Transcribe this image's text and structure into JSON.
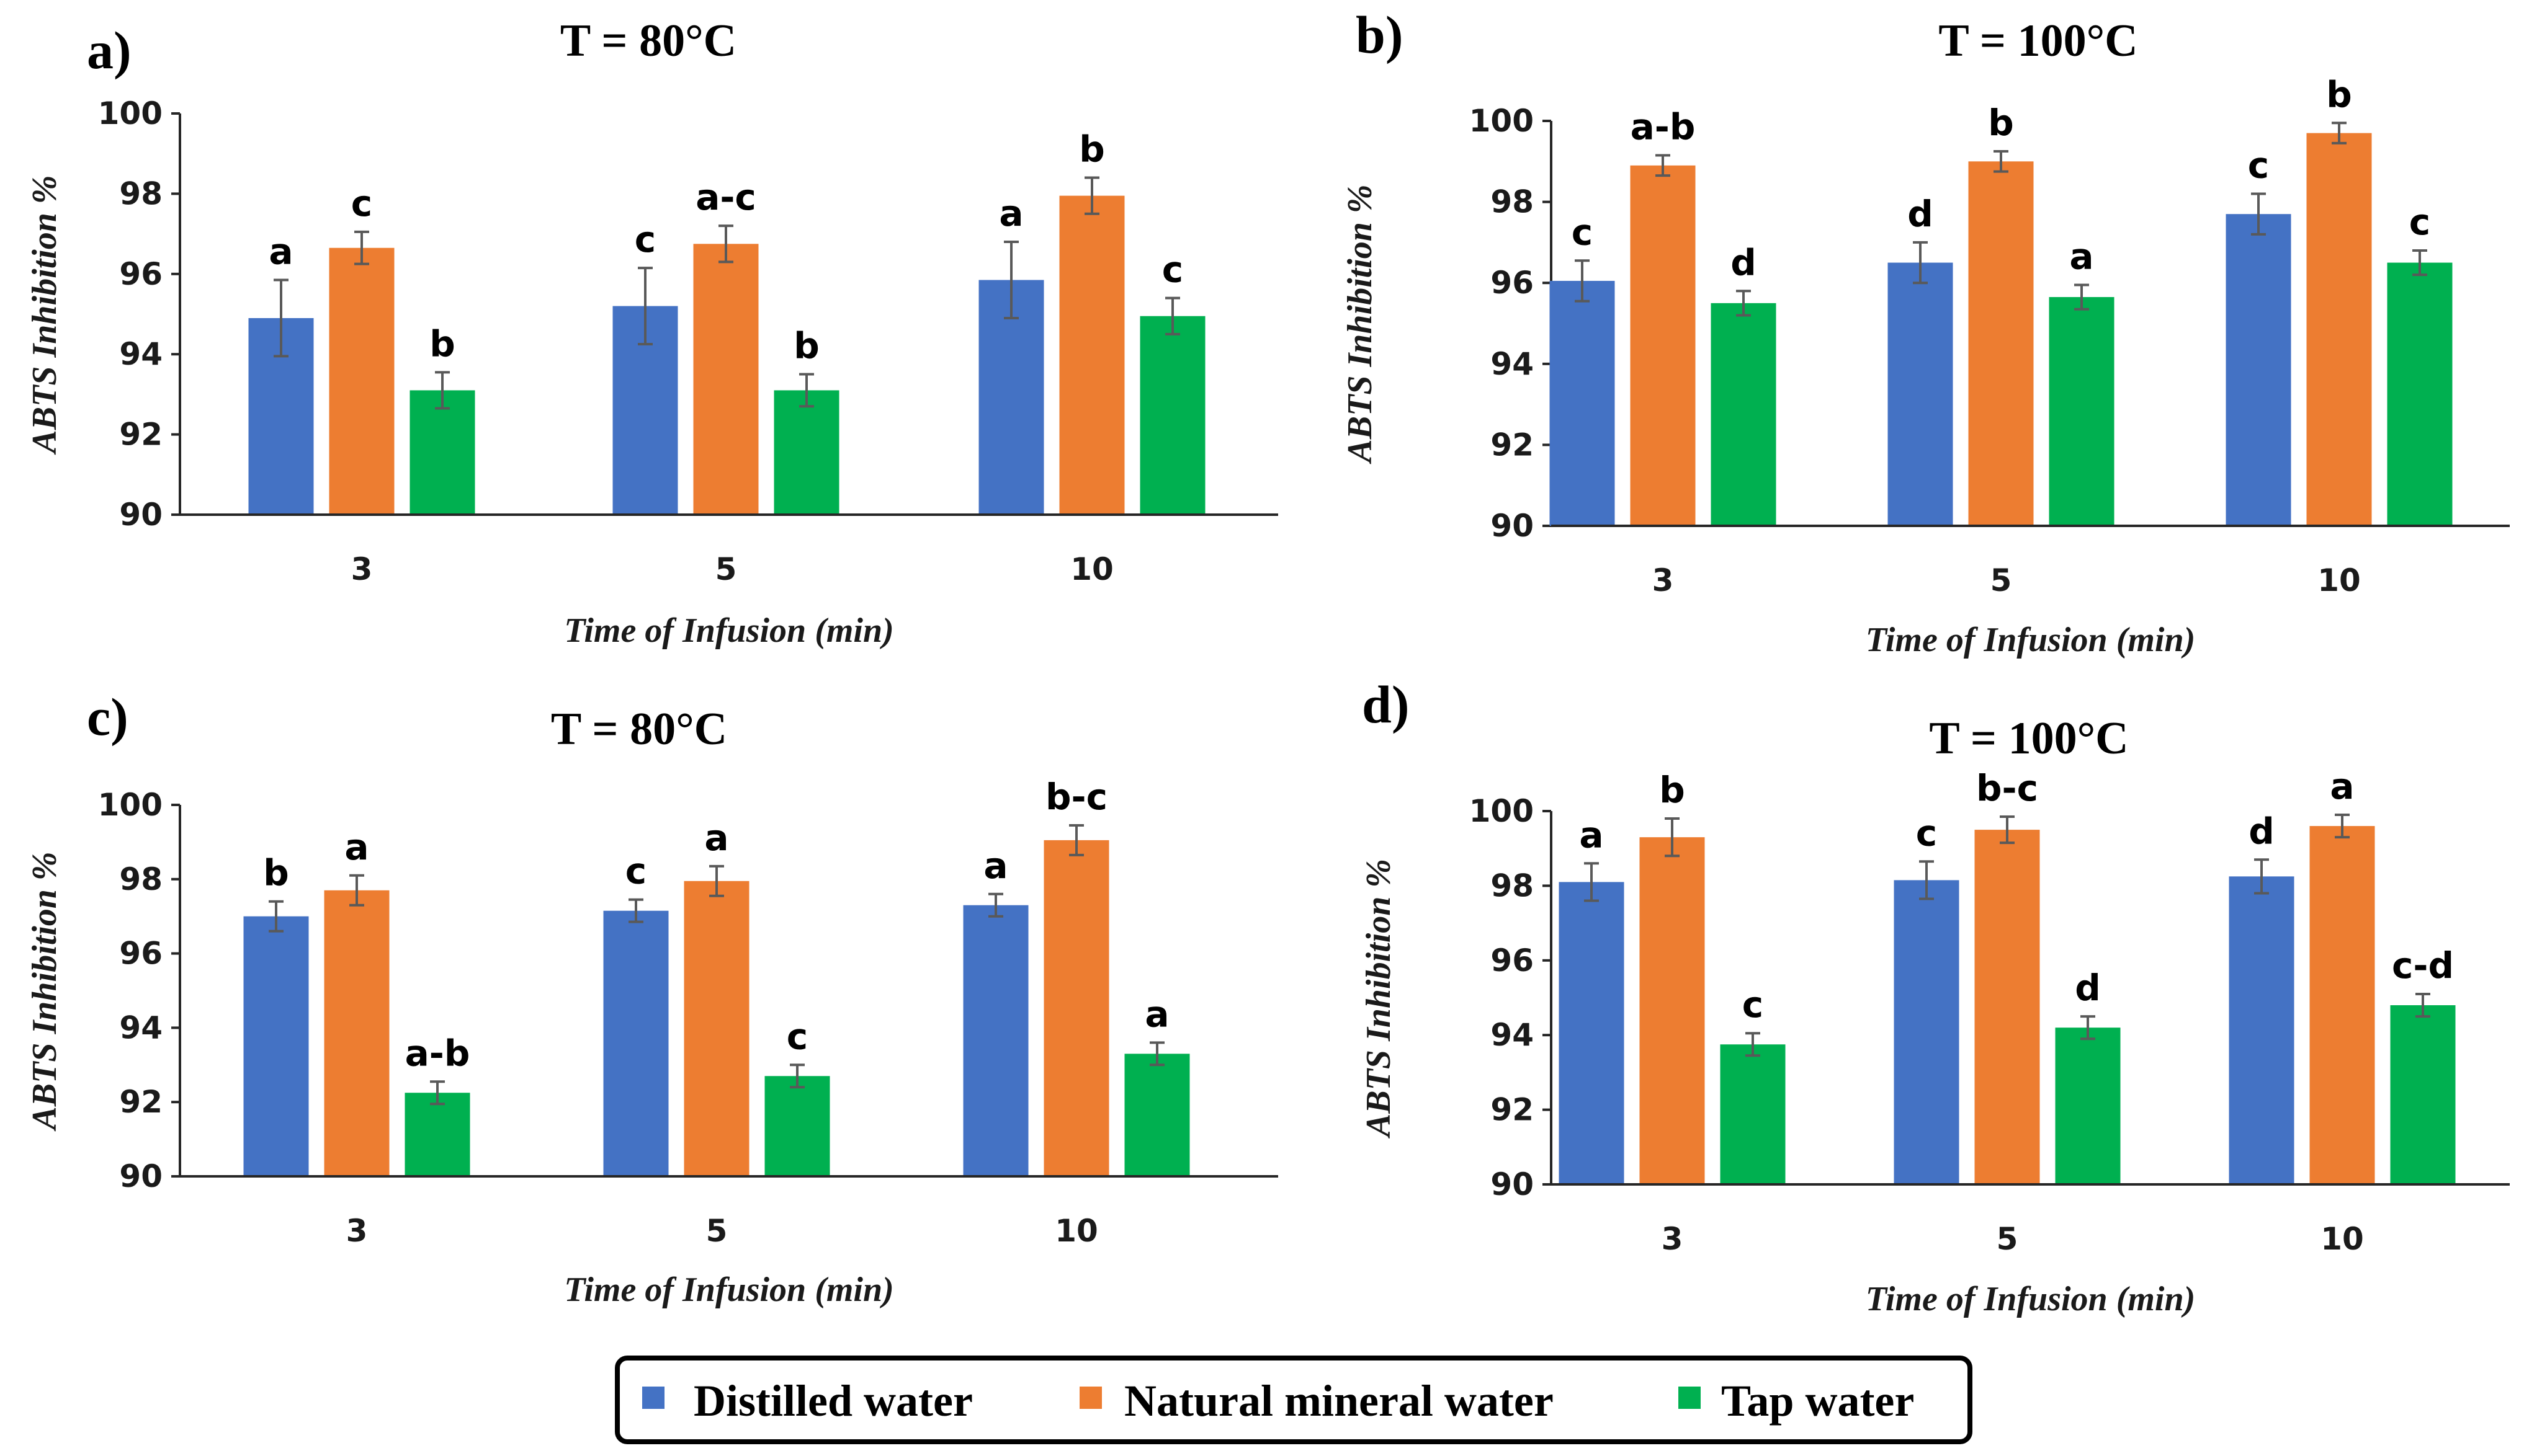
{
  "legend": {
    "items": [
      {
        "label": "Distilled water",
        "color": "#4472C4"
      },
      {
        "label": "Natural mineral water",
        "color": "#ED7D31"
      },
      {
        "label": "Tap water",
        "color": "#00B050"
      }
    ]
  },
  "chart_data": [
    {
      "panel": "a)",
      "type": "bar",
      "title": "T = 80°C",
      "xlabel": "Time of Infusion (min)",
      "ylabel": "ABTS Inhibition %",
      "categories": [
        "3",
        "5",
        "10"
      ],
      "ylim": [
        90,
        100
      ],
      "yticks": [
        90,
        92,
        94,
        96,
        98,
        100
      ],
      "series": [
        {
          "name": "Distilled water",
          "values": [
            94.9,
            95.2,
            95.85
          ],
          "errors": [
            0.95,
            0.95,
            0.95
          ],
          "letters": [
            "a",
            "c",
            "a"
          ]
        },
        {
          "name": "Natural mineral water",
          "values": [
            96.65,
            96.75,
            97.95
          ],
          "errors": [
            0.4,
            0.45,
            0.45
          ],
          "letters": [
            "c",
            "a-c",
            "b"
          ]
        },
        {
          "name": "Tap water",
          "values": [
            93.1,
            93.1,
            94.95
          ],
          "errors": [
            0.45,
            0.4,
            0.45
          ],
          "letters": [
            "b",
            "b",
            "c"
          ]
        }
      ]
    },
    {
      "panel": "b)",
      "type": "bar",
      "title": "T = 100°C",
      "xlabel": "Time of Infusion (min)",
      "ylabel": "ABTS Inhibition %",
      "categories": [
        "3",
        "5",
        "10"
      ],
      "ylim": [
        90,
        100
      ],
      "yticks": [
        90,
        92,
        94,
        96,
        98,
        100
      ],
      "series": [
        {
          "name": "Distilled water",
          "values": [
            96.05,
            96.5,
            97.7
          ],
          "errors": [
            0.5,
            0.5,
            0.5
          ],
          "letters": [
            "c",
            "d",
            "c"
          ]
        },
        {
          "name": "Natural mineral water",
          "values": [
            98.9,
            99.0,
            99.7
          ],
          "errors": [
            0.25,
            0.25,
            0.25
          ],
          "letters": [
            "a-b",
            "b",
            "b"
          ]
        },
        {
          "name": "Tap water",
          "values": [
            95.5,
            95.65,
            96.5
          ],
          "errors": [
            0.3,
            0.3,
            0.3
          ],
          "letters": [
            "d",
            "a",
            "c"
          ]
        }
      ]
    },
    {
      "panel": "c)",
      "type": "bar",
      "title": "T = 80°C",
      "xlabel": "Time of Infusion (min)",
      "ylabel": "ABTS Inhibition %",
      "categories": [
        "3",
        "5",
        "10"
      ],
      "ylim": [
        90,
        100
      ],
      "yticks": [
        90,
        92,
        94,
        96,
        98,
        100
      ],
      "series": [
        {
          "name": "Distilled water",
          "values": [
            97.0,
            97.15,
            97.3
          ],
          "errors": [
            0.4,
            0.3,
            0.3
          ],
          "letters": [
            "b",
            "c",
            "a"
          ]
        },
        {
          "name": "Natural mineral water",
          "values": [
            97.7,
            97.95,
            99.05
          ],
          "errors": [
            0.4,
            0.4,
            0.4
          ],
          "letters": [
            "a",
            "a",
            "b-c"
          ]
        },
        {
          "name": "Tap water",
          "values": [
            92.25,
            92.7,
            93.3
          ],
          "errors": [
            0.3,
            0.3,
            0.3
          ],
          "letters": [
            "a-b",
            "c",
            "a"
          ]
        }
      ]
    },
    {
      "panel": "d)",
      "type": "bar",
      "title": "T = 100°C",
      "xlabel": "Time of Infusion (min)",
      "ylabel": "ABTS Inhibition %",
      "categories": [
        "3",
        "5",
        "10"
      ],
      "ylim": [
        90,
        100
      ],
      "yticks": [
        90,
        92,
        94,
        96,
        98,
        100
      ],
      "series": [
        {
          "name": "Distilled water",
          "values": [
            98.1,
            98.15,
            98.25
          ],
          "errors": [
            0.5,
            0.5,
            0.45
          ],
          "letters": [
            "a",
            "c",
            "d"
          ]
        },
        {
          "name": "Natural mineral water",
          "values": [
            99.3,
            99.5,
            99.6
          ],
          "errors": [
            0.5,
            0.35,
            0.3
          ],
          "letters": [
            "b",
            "b-c",
            "a"
          ]
        },
        {
          "name": "Tap water",
          "values": [
            93.75,
            94.2,
            94.8
          ],
          "errors": [
            0.3,
            0.3,
            0.3
          ],
          "letters": [
            "c",
            "d",
            "c-d"
          ]
        }
      ]
    }
  ]
}
